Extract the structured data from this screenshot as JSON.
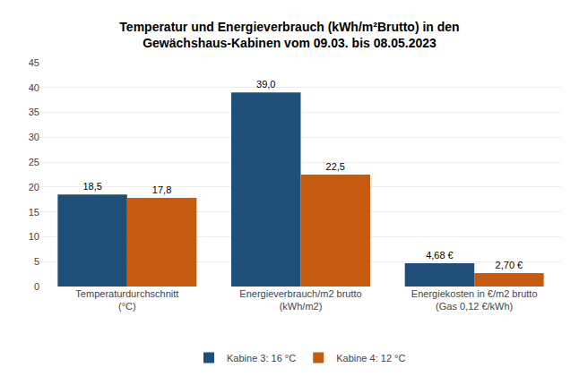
{
  "chart_data": {
    "type": "bar",
    "title": "Temperatur und Energieverbrauch (kWh/m²Brutto) in den\nGewächshaus-Kabinen vom 09.03. bis 08.05.2023",
    "categories": [
      "Temperaturdurchschnitt\n(°C)",
      "Energieverbrauch/m2 brutto\n(kWh/m2)",
      "Energiekosten in €/m2 brutto\n(Gas 0,12 €/kWh)"
    ],
    "series": [
      {
        "name": "Kabine 3: 16 °C",
        "color": "#1F4E79",
        "values": [
          18.5,
          39.0,
          4.68
        ],
        "value_labels": [
          "18,5",
          "39,0",
          "4,68 €"
        ]
      },
      {
        "name": "Kabine 4: 12 °C",
        "color": "#C55A11",
        "values": [
          17.8,
          22.5,
          2.7
        ],
        "value_labels": [
          "17,8",
          "22,5",
          "2,70 €"
        ]
      }
    ],
    "ylim": [
      0,
      45
    ],
    "yticks": [
      0,
      5,
      10,
      15,
      20,
      25,
      30,
      35,
      40,
      45
    ],
    "grid": true,
    "legend": "bottom",
    "data_labels": true
  }
}
